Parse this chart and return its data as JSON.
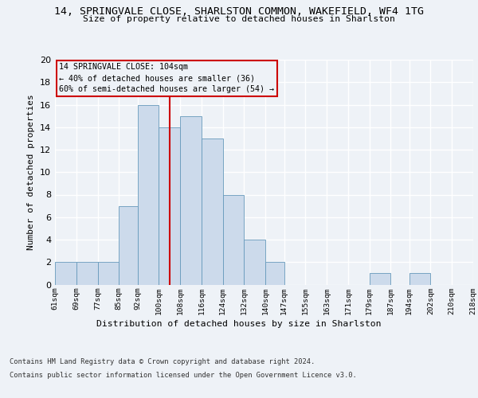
{
  "title": "14, SPRINGVALE CLOSE, SHARLSTON COMMON, WAKEFIELD, WF4 1TG",
  "subtitle": "Size of property relative to detached houses in Sharlston",
  "xlabel": "Distribution of detached houses by size in Sharlston",
  "ylabel": "Number of detached properties",
  "bar_color": "#ccdaeb",
  "bar_edge_color": "#6699bb",
  "bins": [
    61,
    69,
    77,
    85,
    92,
    100,
    108,
    116,
    124,
    132,
    140,
    147,
    155,
    163,
    171,
    179,
    187,
    194,
    202,
    210,
    218
  ],
  "bin_labels": [
    "61sqm",
    "69sqm",
    "77sqm",
    "85sqm",
    "92sqm",
    "100sqm",
    "108sqm",
    "116sqm",
    "124sqm",
    "132sqm",
    "140sqm",
    "147sqm",
    "155sqm",
    "163sqm",
    "171sqm",
    "179sqm",
    "187sqm",
    "194sqm",
    "202sqm",
    "210sqm",
    "218sqm"
  ],
  "counts": [
    2,
    2,
    2,
    7,
    16,
    14,
    15,
    13,
    8,
    4,
    2,
    0,
    0,
    0,
    0,
    1,
    0,
    1,
    0,
    0
  ],
  "property_size": 104,
  "annotation_line1": "14 SPRINGVALE CLOSE: 104sqm",
  "annotation_line2": "← 40% of detached houses are smaller (36)",
  "annotation_line3": "60% of semi-detached houses are larger (54) →",
  "vline_color": "#cc0000",
  "annotation_box_color": "#cc0000",
  "ylim": [
    0,
    20
  ],
  "yticks": [
    0,
    2,
    4,
    6,
    8,
    10,
    12,
    14,
    16,
    18,
    20
  ],
  "footer_line1": "Contains HM Land Registry data © Crown copyright and database right 2024.",
  "footer_line2": "Contains public sector information licensed under the Open Government Licence v3.0.",
  "background_color": "#eef2f7",
  "grid_color": "#ffffff"
}
